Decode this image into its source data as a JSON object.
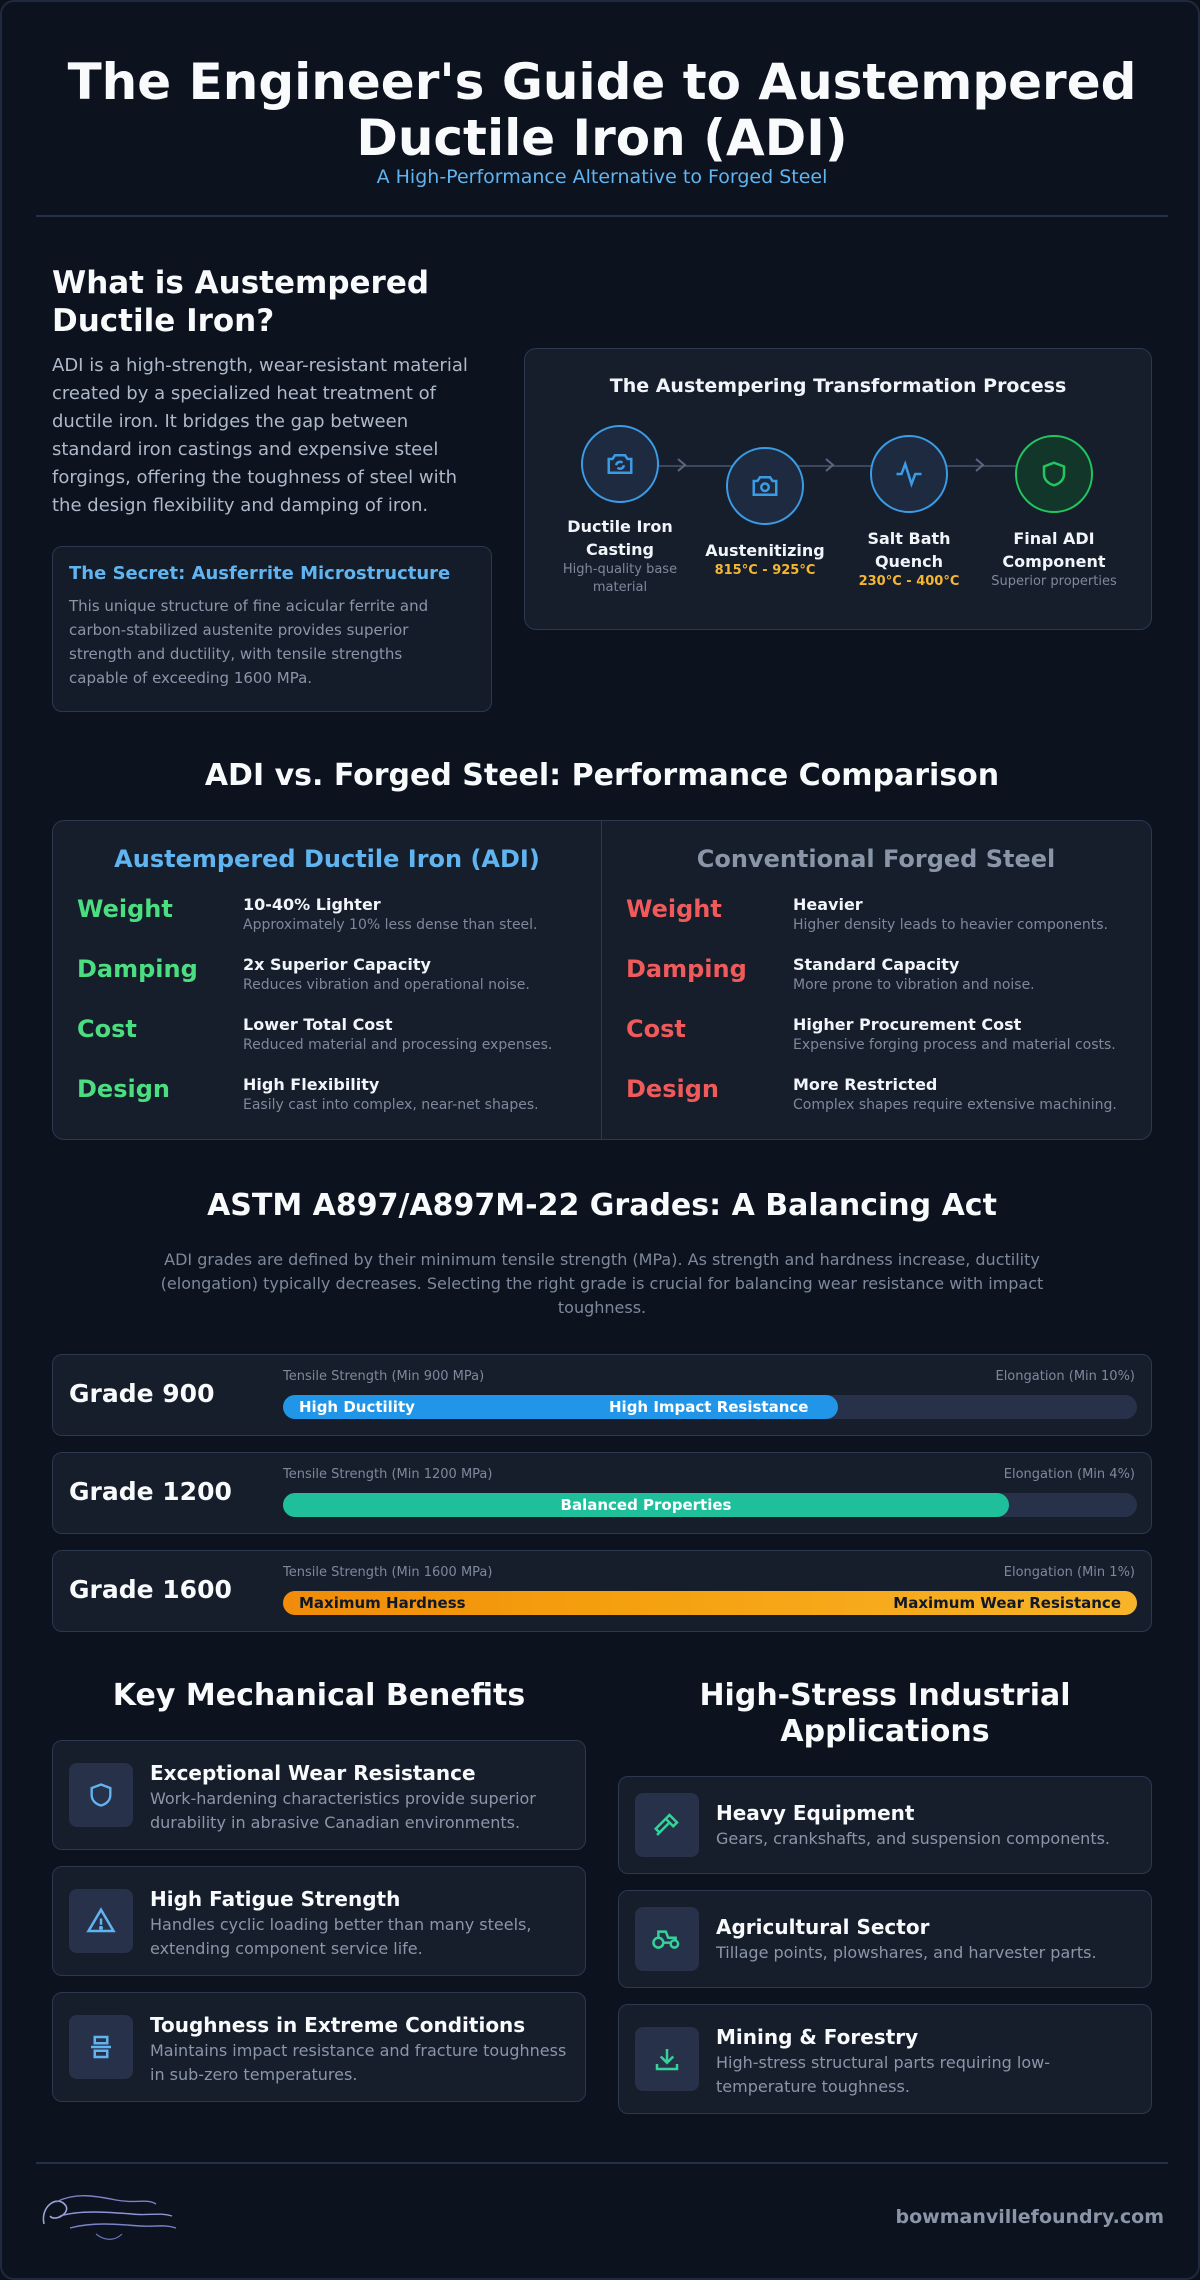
{
  "header": {
    "title_line1": "The Engineer's Guide to Austempered",
    "title_line2": "Ductile Iron (ADI)",
    "subtitle": "A High-Performance Alternative to Forged Steel"
  },
  "intro": {
    "heading_line1": "What is Austempered",
    "heading_line2": "Ductile Iron?",
    "lines": [
      "ADI is a high-strength, wear-resistant material",
      "created by a specialized heat treatment of",
      "ductile iron. It bridges the gap between",
      "standard iron castings and expensive steel",
      "forgings, offering the toughness of steel with",
      "the design flexibility and damping of iron."
    ],
    "secret_title": "The Secret: Ausferrite Microstructure",
    "secret_lines": [
      "This unique structure of fine acicular ferrite and",
      "carbon-stabilized austenite provides superior",
      "strength and ductility, with tensile strengths",
      "capable of exceeding 1600 MPa."
    ]
  },
  "process": {
    "title": "The Austempering Transformation Process",
    "steps": [
      {
        "label_line1": "Ductile Iron",
        "label_line2": "Casting",
        "sub_line1": "High-quality base",
        "sub_line2": "material",
        "icon": "camera-refresh-icon"
      },
      {
        "label_line1": "Austenitizing",
        "temp": "815°C - 925°C",
        "icon": "camera-icon"
      },
      {
        "label_line1": "Salt Bath",
        "label_line2": "Quench",
        "temp": "230°C - 400°C",
        "icon": "activity-icon"
      },
      {
        "label_line1": "Final ADI",
        "label_line2": "Component",
        "sub_line1": "Superior properties",
        "icon": "shield-icon"
      }
    ]
  },
  "comparison": {
    "heading": "ADI vs. Forged Steel: Performance Comparison",
    "adi": {
      "title": "Austempered Ductile Iron (ADI)",
      "rows": [
        {
          "label": "Weight",
          "head": "10-40% Lighter",
          "desc": "Approximately 10% less dense than steel."
        },
        {
          "label": "Damping",
          "head": "2x Superior Capacity",
          "desc": "Reduces vibration and operational noise."
        },
        {
          "label": "Cost",
          "head": "Lower Total Cost",
          "desc": "Reduced material and processing expenses."
        },
        {
          "label": "Design",
          "head": "High Flexibility",
          "desc": "Easily cast into complex, near-net shapes."
        }
      ]
    },
    "steel": {
      "title": "Conventional Forged Steel",
      "rows": [
        {
          "label": "Weight",
          "head": "Heavier",
          "desc": "Higher density leads to heavier components."
        },
        {
          "label": "Damping",
          "head": "Standard Capacity",
          "desc": "More prone to vibration and noise."
        },
        {
          "label": "Cost",
          "head": "Higher Procurement Cost",
          "desc": "Expensive forging process and material costs."
        },
        {
          "label": "Design",
          "head": "More Restricted",
          "desc": "Complex shapes require extensive machining."
        }
      ]
    },
    "colors": {
      "adi": "#4ade80",
      "steel": "#f05a5a",
      "adi_title": "#60b4f0",
      "steel_title": "#8a96a8"
    }
  },
  "grades": {
    "heading": "ASTM A897/A897M-22 Grades: A Balancing Act",
    "intro_lines": [
      "ADI grades are defined by their minimum tensile strength (MPa). As strength and hardness increase, ductility",
      "(elongation) typically decreases. Selecting the right grade is crucial for balancing wear resistance with impact",
      "toughness."
    ],
    "items": [
      {
        "name": "Grade 900",
        "tensile": "Tensile Strength (Min 900 MPa)",
        "elongation": "Elongation (Min 10%)",
        "fill": 0.65,
        "left_text": "High Ductility",
        "right_text": "High Impact Resistance",
        "color": "#2196e8"
      },
      {
        "name": "Grade 1200",
        "tensile": "Tensile Strength (Min 1200 MPa)",
        "elongation": "Elongation (Min 4%)",
        "fill": 0.85,
        "center_text": "Balanced Properties",
        "color": "#1fbf9b"
      },
      {
        "name": "Grade 1600",
        "tensile": "Tensile Strength (Min 1600 MPa)",
        "elongation": "Elongation (Min 1%)",
        "fill": 1.0,
        "left_text": "Maximum Hardness",
        "right_text": "Maximum Wear Resistance",
        "color": "#f5a00f"
      }
    ]
  },
  "benefits": {
    "heading": "Key Mechanical Benefits",
    "items": [
      {
        "title": "Exceptional Wear Resistance",
        "line1": "Work-hardening characteristics provide superior",
        "line2": "durability in abrasive Canadian environments.",
        "icon": "shield-icon"
      },
      {
        "title": "High Fatigue Strength",
        "line1": "Handles cyclic loading better than many steels,",
        "line2": "extending component service life.",
        "icon": "warning-triangle-icon"
      },
      {
        "title": "Toughness in Extreme Conditions",
        "line1": "Maintains impact resistance and fracture toughness",
        "line2": "in sub-zero temperatures.",
        "icon": "compress-icon"
      }
    ]
  },
  "applications": {
    "heading_line1": "High-Stress Industrial",
    "heading_line2": "Applications",
    "items": [
      {
        "title": "Heavy Equipment",
        "line1": "Gears, crankshafts, and suspension components.",
        "icon": "hammer-icon"
      },
      {
        "title": "Agricultural Sector",
        "line1": "Tillage points, plowshares, and harvester parts.",
        "icon": "tractor-icon"
      },
      {
        "title": "Mining & Forestry",
        "line1": "High-stress structural parts requiring low-",
        "line2": "temperature toughness.",
        "icon": "download-icon"
      }
    ]
  },
  "footer": {
    "logo_text": "Bowmanville Foundry Company",
    "url": "bowmanvillefoundry.com"
  }
}
